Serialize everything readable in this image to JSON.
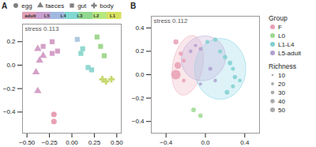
{
  "chart_data": [
    {
      "type": "scatter",
      "title": "A",
      "annotation": "stress 0.113",
      "xlim": [
        -0.55,
        0.55
      ],
      "ylim": [
        -0.58,
        0.35
      ],
      "xticks": [
        {
          "value": -0.5,
          "label": "−0.50"
        },
        {
          "value": -0.25,
          "label": "−0.25"
        },
        {
          "value": 0,
          "label": "0.00"
        },
        0.25,
        {
          "value": 0.5,
          "label": "0.50"
        }
      ],
      "yticks": [
        {
          "value": -0.4,
          "label": "−0.4"
        },
        {
          "value": -0.2,
          "label": "−0.2"
        },
        {
          "value": 0,
          "label": "0.0"
        },
        0.2
      ],
      "grid": false,
      "legend": "top",
      "colorbar": {
        "colors": [
          "#e0a0b8",
          "#c8a0d0",
          "#a0b8e0",
          "#80d8d0",
          "#90d890",
          "#b8e880",
          "#d8e060"
        ],
        "labels": [
          "adult",
          "L5",
          "L4",
          "L3",
          "L2",
          "L1"
        ]
      },
      "series": [
        {
          "name": "egg",
          "marker": "circle",
          "color": "gray",
          "x": [
            -0.2,
            -0.2
          ],
          "y": [
            -0.42,
            -0.48
          ],
          "colors": [
            "#e8a0b4",
            "#e8a0b4"
          ]
        },
        {
          "name": "faeces",
          "marker": "triangle",
          "color": "gray",
          "x": [
            -0.38,
            -0.32,
            -0.36,
            -0.4,
            -0.38
          ],
          "y": [
            0.14,
            0.08,
            0.04,
            -0.06,
            -0.22
          ],
          "colors": [
            "#d4a0c8",
            "#d4a0c8",
            "#d4a0c8",
            "#d4a0c8",
            "#d4a0c8"
          ]
        },
        {
          "name": "gut",
          "marker": "square",
          "color": "gray",
          "x": [
            -0.32,
            -0.22,
            -0.16,
            -0.22,
            0.06,
            0.1,
            0.12,
            0.18,
            0.22,
            0.28,
            0.32,
            0.36
          ],
          "y": [
            0.16,
            0.2,
            0.12,
            0.1,
            0.22,
            0.1,
            0.14,
            -0.02,
            -0.04,
            0.24,
            0.16,
            0.08
          ],
          "colors": [
            "#d4a0c8",
            "#d4a0c8",
            "#d4a0c8",
            "#d4a0c8",
            "#b0c8e0",
            "#90d8d0",
            "#90d8d0",
            "#90d8d0",
            "#90d8d0",
            "#a0d890",
            "#a0d890",
            "#a0d890"
          ]
        },
        {
          "name": "body",
          "marker": "cross",
          "color": "gray",
          "x": [
            0.34,
            0.38,
            0.44
          ],
          "y": [
            -0.12,
            -0.14,
            -0.12
          ],
          "colors": [
            "#c8d870",
            "#c8d870",
            "#c8d870"
          ]
        }
      ]
    },
    {
      "type": "scatter",
      "title": "B",
      "annotation": "stress 0.112",
      "xlim": [
        -0.55,
        0.55
      ],
      "ylim": [
        -0.5,
        0.5
      ],
      "xticks": [
        {
          "value": -0.4,
          "label": "−0.4"
        },
        {
          "value": 0,
          "label": "0.0"
        },
        0.4
      ],
      "yticks": [
        {
          "value": -0.4,
          "label": "−0.4"
        },
        {
          "value": -0.2,
          "label": "−0.2"
        },
        {
          "value": 0,
          "label": "0.0"
        },
        0.2,
        0.4
      ],
      "grid": false,
      "legend": "right",
      "legend_title": "Group",
      "size_legend": {
        "title": "Richness",
        "values": [
          10,
          20,
          30,
          40,
          50
        ]
      },
      "ellipses": [
        {
          "cx": -0.18,
          "cy": 0.08,
          "w": 0.3,
          "h": 0.52,
          "angle": -15,
          "color": "#f0b0c0"
        },
        {
          "cx": 0.15,
          "cy": 0.05,
          "w": 0.52,
          "h": 0.52,
          "angle": 5,
          "color": "#90d8e8"
        },
        {
          "cx": -0.02,
          "cy": 0.14,
          "w": 0.45,
          "h": 0.38,
          "angle": 10,
          "color": "#c0b0d8"
        }
      ],
      "series": [
        {
          "name": "F",
          "color": "#e8a0b4",
          "x": [
            -0.3,
            -0.25,
            -0.22,
            -0.28,
            -0.3,
            -0.22
          ],
          "y": [
            0.28,
            0.18,
            0.12,
            0.08,
            0.0,
            -0.05
          ],
          "size": [
            60,
            40,
            35,
            100,
            200,
            30
          ]
        },
        {
          "name": "L0",
          "color": "#a0d890",
          "x": [
            -0.12,
            -0.05
          ],
          "y": [
            -0.3,
            -0.35
          ],
          "size": [
            50,
            45
          ]
        },
        {
          "name": "L1-L4",
          "color": "#80d0d0",
          "x": [
            0.02,
            0.1,
            0.15,
            0.2,
            0.25,
            0.28,
            0.3,
            0.28,
            0.22,
            0.35
          ],
          "y": [
            0.28,
            0.3,
            0.2,
            0.15,
            0.1,
            0.05,
            -0.02,
            -0.1,
            -0.15,
            -0.05
          ],
          "size": [
            35,
            40,
            35,
            40,
            45,
            35,
            40,
            35,
            50,
            30
          ]
        },
        {
          "name": "L5-adult",
          "color": "#b0a0d0",
          "x": [
            -0.15,
            -0.1,
            -0.05,
            0.1,
            0.05,
            -0.05
          ],
          "y": [
            0.2,
            0.25,
            0.22,
            -0.05,
            0.05,
            -0.08
          ],
          "size": [
            30,
            25,
            30,
            30,
            35,
            25
          ]
        }
      ]
    }
  ]
}
